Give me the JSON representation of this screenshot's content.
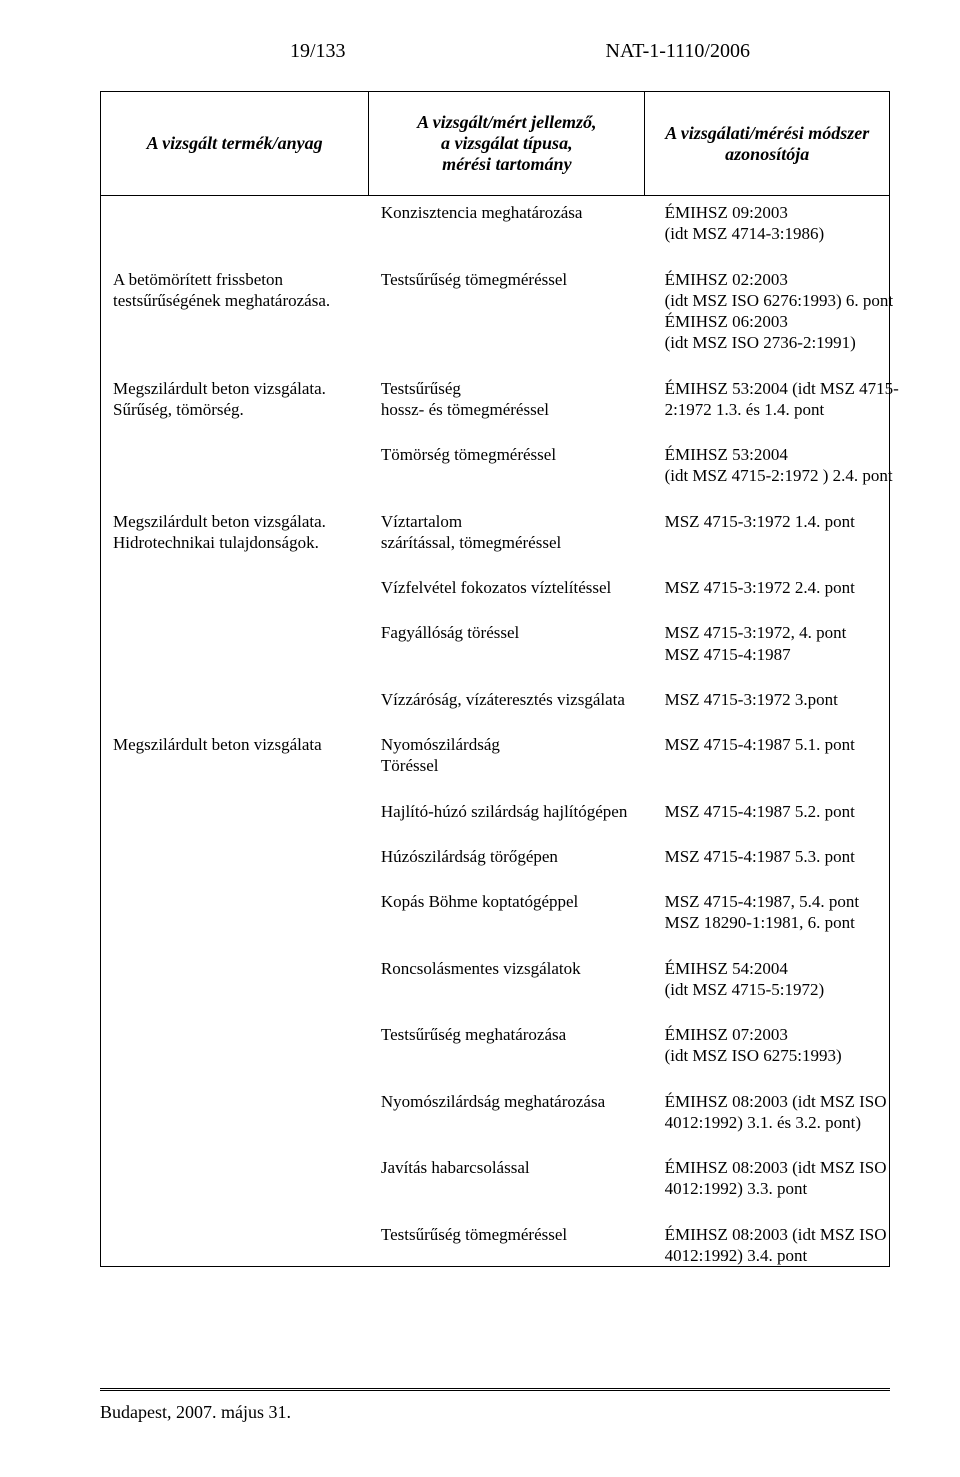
{
  "header": {
    "page_num": "19/133",
    "doc_ref": "NAT-1-1110/2006"
  },
  "table": {
    "columns": {
      "c1": "A vizsgált termék/anyag",
      "c2": "A vizsgált/mért jellemző,\na vizsgálat típusa,\nmérési tartomány",
      "c3": "A vizsgálati/mérési módszer\nazonosítója"
    },
    "rows": [
      {
        "c1": "",
        "c2": "Konzisztencia meghatározása",
        "c3": "ÉMIHSZ 09:2003\n(idt MSZ 4714-3:1986)"
      },
      {
        "c1": "A betömörített frissbeton testsűrűségének meghatározása.",
        "c2": "Testsűrűség tömegméréssel",
        "c3": "ÉMIHSZ 02:2003\n(idt MSZ ISO 6276:1993) 6. pont\nÉMIHSZ 06:2003\n(idt MSZ ISO 2736-2:1991)"
      },
      {
        "c1": "Megszilárdult beton vizsgálata.\nSűrűség, tömörség.",
        "c2": "Testsűrűség\nhossz- és tömegméréssel",
        "c3": "ÉMIHSZ 53:2004 (idt MSZ 4715-2:1972  1.3. és 1.4. pont"
      },
      {
        "c1": "",
        "c2": "Tömörség  tömegméréssel",
        "c3": "ÉMIHSZ 53:2004\n(idt MSZ 4715-2:1972 ) 2.4. pont"
      },
      {
        "c1": " Megszilárdult beton vizsgálata.\nHidrotechnikai tulajdonságok.",
        "c2": "Víztartalom\nszárítással, tömegméréssel",
        "c3": "MSZ 4715-3:1972  1.4. pont"
      },
      {
        "c1": "",
        "c2": "Vízfelvétel fokozatos víztelítéssel",
        "c3": "MSZ 4715-3:1972  2.4. pont"
      },
      {
        "c1": "",
        "c2": "Fagyállóság  töréssel",
        "c3": "MSZ 4715-3:1972, 4. pont\nMSZ 4715-4:1987"
      },
      {
        "c1": "",
        "c2": "Vízzáróság, vízáteresztés vizsgálata",
        "c3": "MSZ 4715-3:1972 3.pont"
      },
      {
        "c1": "Megszilárdult beton vizsgálata",
        "c2": "Nyomószilárdság\nTöréssel",
        "c3": "MSZ 4715-4:1987  5.1. pont"
      },
      {
        "c1": "",
        "c2": "Hajlító-húzó szilárdság hajlítógépen",
        "c3": "MSZ 4715-4:1987  5.2. pont"
      },
      {
        "c1": "",
        "c2": "Húzószilárdság törőgépen",
        "c3": "MSZ 4715-4:1987  5.3. pont"
      },
      {
        "c1": "",
        "c2": "Kopás Böhme koptatógéppel",
        "c3": "MSZ 4715-4:1987, 5.4. pont\nMSZ 18290-1:1981, 6. pont"
      },
      {
        "c1": "",
        "c2": "Roncsolásmentes vizsgálatok",
        "c3": "ÉMIHSZ 54:2004\n(idt MSZ 4715-5:1972)"
      },
      {
        "c1": "",
        "c2": "Testsűrűség meghatározása",
        "c3": "ÉMIHSZ 07:2003\n(idt MSZ ISO 6275:1993)"
      },
      {
        "c1": "",
        "c2": "Nyomószilárdság meghatározása",
        "c3": "ÉMIHSZ 08:2003 (idt MSZ ISO 4012:1992)  3.1. és 3.2. pont)"
      },
      {
        "c1": "",
        "c2": "Javítás habarcsolással",
        "c3": "ÉMIHSZ 08:2003 (idt MSZ ISO 4012:1992) 3.3. pont"
      },
      {
        "c1": "",
        "c2": "Testsűrűség tömegméréssel",
        "c3": "ÉMIHSZ 08:2003 (idt MSZ ISO 4012:1992) 3.4. pont"
      }
    ]
  },
  "footer": {
    "text": "Budapest, 2007. május 31."
  }
}
